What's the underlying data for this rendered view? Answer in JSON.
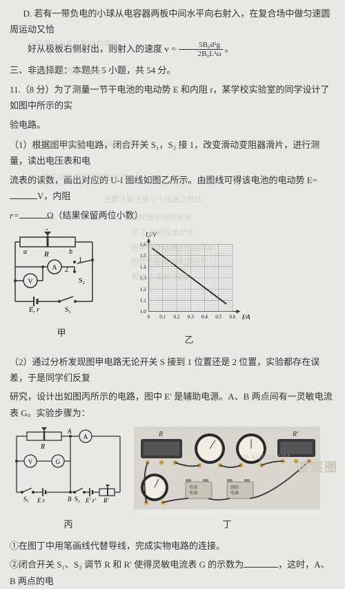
{
  "optD": "D. 若有一带负电的小球从电容器两板中间水平向右射入，在复合场中做匀速圆周运动又恰",
  "optD2_pre": "好从极板右侧射出，则射入的速度 v = ",
  "optD2_num": "5B₀d²g",
  "optD2_den": "2B₀L²ω",
  "optD2_post": "。",
  "section3": "三、非选择题：本题共 5 小题，共 54 分。",
  "q11_a": "11.（8 分）为了测量一节干电池的电动势 E 和内阻 r，某学校实验室的同学设计了如图中所示的实",
  "q11_b": "验电路。",
  "q11_1a": "（1）根据图甲实验电路，闭合开关 S₁，S₂ 接 1，改变滑动变阻器滑片，进行测量，读出电压表和电",
  "q11_1b_pre": "流表的读数，画出对应的 U-I 图线如图乙所示。由图线可得该电池的电动势 E=",
  "q11_1b_mid": "V，内阻",
  "q11_1c_pre": "r=",
  "q11_1c_post": "Ω（结果保留两位小数）",
  "graph": {
    "ylabel": "U/V",
    "xlabel": "I/A",
    "xticks": [
      "0",
      "0.1",
      "0.2",
      "0.3",
      "0.4",
      "0.5",
      "0.6"
    ],
    "yticks": [
      "1.0",
      "1.1",
      "1.2",
      "1.3",
      "1.4",
      "1.5",
      "1.6"
    ],
    "line_start": [
      0.02,
      1.52
    ],
    "line_end": [
      0.58,
      1.07
    ],
    "grid_color": "#999",
    "line_color": "#222"
  },
  "circuit1_labels": {
    "P": "P",
    "a": "a",
    "b": "b",
    "R": "R",
    "one": "1",
    "two": "2",
    "V": "V",
    "A": "A",
    "S2": "S₂",
    "E": "E, r",
    "S1": "S₁"
  },
  "caption_jia": "甲",
  "caption_yi": "乙",
  "q11_2a": "（2）通过分析发现图甲电路无论开关 S 接到 1 位置还是 2 位置，实验都存在误差，于是同学们反复",
  "q11_2b": "研究，设计出如图丙所示的电路，图中 E′ 是辅助电源。A、B 两点间有一灵敏电流表 G。实验步骤为：",
  "circuit2_labels": {
    "R": "R",
    "A": "A",
    "Amm": "A",
    "V": "V",
    "G": "G",
    "S1": "S₁",
    "E": "E  r",
    "S2": "S₂",
    "Ep": "E′ r′",
    "Rp": "R′",
    "B": "B"
  },
  "caption_bing": "丙",
  "caption_ding": "丁",
  "step1": "①在图丁中用笔画线代替导线，完成实物电路的连接。",
  "step2_pre": "②闭合开关 S₁、S₂ 调节 R 和 R′ 使得灵敏电流表 G 的示数为",
  "step2_mid": "，这时，A、B 两点的电",
  "watermark": "答案圈",
  "wm2": "WXQEE.COM"
}
